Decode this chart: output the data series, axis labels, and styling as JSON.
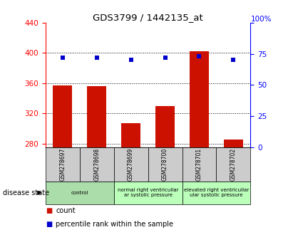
{
  "title": "GDS3799 / 1442135_at",
  "samples": [
    "GSM278697",
    "GSM278698",
    "GSM278699",
    "GSM278700",
    "GSM278701",
    "GSM278702"
  ],
  "bar_values": [
    357,
    356,
    307,
    330,
    402,
    285
  ],
  "bar_bottom": 275,
  "percentile_values": [
    72,
    72,
    70,
    72,
    73,
    70
  ],
  "ylim_left": [
    275,
    440
  ],
  "ylim_right": [
    0,
    100
  ],
  "yticks_left": [
    280,
    320,
    360,
    400,
    440
  ],
  "yticks_right": [
    0,
    25,
    50,
    75,
    100
  ],
  "bar_color": "#cc1100",
  "dot_color": "#0000cc",
  "group_defs": [
    {
      "start": 0,
      "end": 1,
      "label": "control",
      "color": "#aaddaa"
    },
    {
      "start": 2,
      "end": 3,
      "label": "normal right ventricullar\nar systolic pressure",
      "color": "#bbffbb"
    },
    {
      "start": 4,
      "end": 5,
      "label": "elevated right ventricullar\nular systolic pressure",
      "color": "#bbffbb"
    }
  ],
  "disease_state_label": "disease state",
  "legend_count": "count",
  "legend_percentile": "percentile rank within the sample",
  "figsize": [
    4.11,
    3.54
  ],
  "dpi": 100
}
